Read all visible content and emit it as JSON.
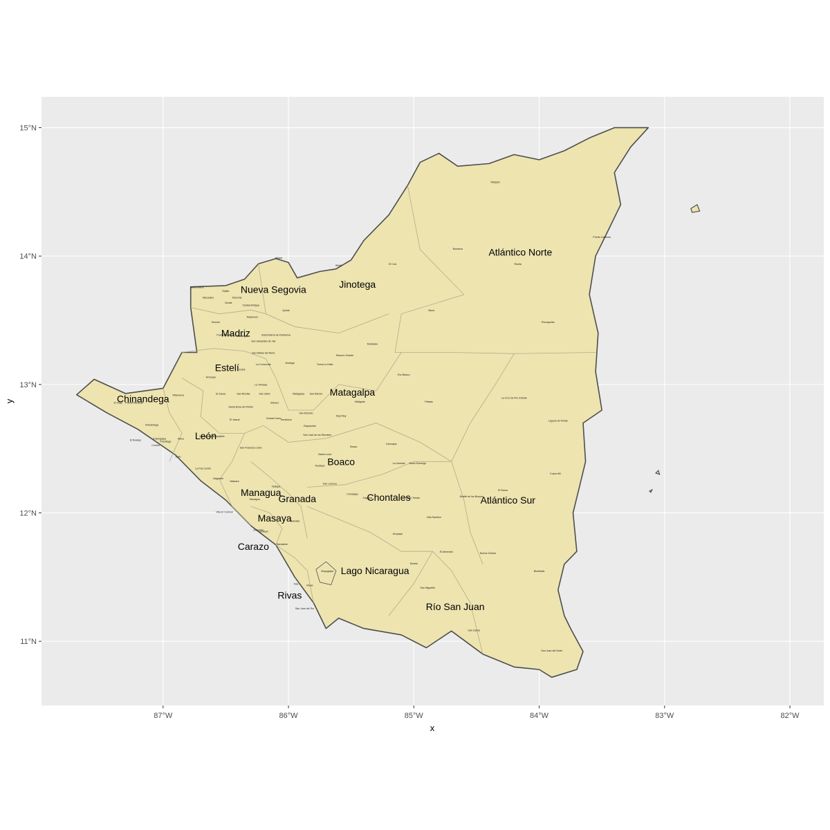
{
  "map": {
    "panel_background": "#ebebeb",
    "grid_color": "#ffffff",
    "land_fill": "#ede4b0",
    "outline_color": "#4d4d4d",
    "inner_border_color": "#b3ab8a",
    "x_axis_title": "x",
    "y_axis_title": "y",
    "x_ticks": [
      {
        "label": "87°W",
        "lon": -87
      },
      {
        "label": "86°W",
        "lon": -86
      },
      {
        "label": "85°W",
        "lon": -85
      },
      {
        "label": "84°W",
        "lon": -84
      },
      {
        "label": "83°W",
        "lon": -83
      },
      {
        "label": "82°W",
        "lon": -82
      }
    ],
    "y_ticks": [
      {
        "label": "15°N",
        "lat": 15
      },
      {
        "label": "14°N",
        "lat": 14
      },
      {
        "label": "13°N",
        "lat": 13
      },
      {
        "label": "12°N",
        "lat": 12
      },
      {
        "label": "11°N",
        "lat": 11
      }
    ],
    "lon_range": [
      -87.97,
      -81.73
    ],
    "lat_range": [
      10.5,
      15.24
    ],
    "outline": [
      [
        -87.69,
        12.92
      ],
      [
        -87.55,
        13.04
      ],
      [
        -87.3,
        12.93
      ],
      [
        -87.0,
        12.97
      ],
      [
        -86.85,
        13.25
      ],
      [
        -86.73,
        13.25
      ],
      [
        -86.78,
        13.6
      ],
      [
        -86.78,
        13.76
      ],
      [
        -86.5,
        13.77
      ],
      [
        -86.35,
        13.82
      ],
      [
        -86.24,
        13.94
      ],
      [
        -86.1,
        13.98
      ],
      [
        -86.0,
        13.95
      ],
      [
        -85.93,
        13.83
      ],
      [
        -85.75,
        13.88
      ],
      [
        -85.62,
        13.9
      ],
      [
        -85.5,
        13.97
      ],
      [
        -85.4,
        14.12
      ],
      [
        -85.2,
        14.32
      ],
      [
        -85.05,
        14.55
      ],
      [
        -84.95,
        14.73
      ],
      [
        -84.8,
        14.8
      ],
      [
        -84.65,
        14.7
      ],
      [
        -84.4,
        14.72
      ],
      [
        -84.2,
        14.79
      ],
      [
        -84.0,
        14.75
      ],
      [
        -83.8,
        14.82
      ],
      [
        -83.6,
        14.92
      ],
      [
        -83.4,
        15.0
      ],
      [
        -83.13,
        15.0
      ],
      [
        -83.27,
        14.85
      ],
      [
        -83.4,
        14.65
      ],
      [
        -83.35,
        14.4
      ],
      [
        -83.45,
        14.2
      ],
      [
        -83.55,
        14.0
      ],
      [
        -83.6,
        13.7
      ],
      [
        -83.53,
        13.4
      ],
      [
        -83.55,
        13.1
      ],
      [
        -83.5,
        12.8
      ],
      [
        -83.65,
        12.7
      ],
      [
        -83.63,
        12.4
      ],
      [
        -83.68,
        12.2
      ],
      [
        -83.73,
        12.0
      ],
      [
        -83.7,
        11.7
      ],
      [
        -83.8,
        11.6
      ],
      [
        -83.85,
        11.4
      ],
      [
        -83.8,
        11.2
      ],
      [
        -83.75,
        11.1
      ],
      [
        -83.65,
        10.92
      ],
      [
        -83.7,
        10.78
      ],
      [
        -83.9,
        10.72
      ],
      [
        -84.0,
        10.78
      ],
      [
        -84.2,
        10.8
      ],
      [
        -84.45,
        10.9
      ],
      [
        -84.7,
        11.08
      ],
      [
        -84.9,
        10.95
      ],
      [
        -85.1,
        11.05
      ],
      [
        -85.4,
        11.1
      ],
      [
        -85.6,
        11.18
      ],
      [
        -85.7,
        11.1
      ],
      [
        -85.8,
        11.3
      ],
      [
        -85.95,
        11.5
      ],
      [
        -86.1,
        11.75
      ],
      [
        -86.3,
        11.9
      ],
      [
        -86.5,
        12.1
      ],
      [
        -86.7,
        12.25
      ],
      [
        -86.9,
        12.45
      ],
      [
        -87.2,
        12.65
      ],
      [
        -87.45,
        12.78
      ]
    ],
    "islands": [
      [
        [
          -82.79,
          14.37
        ],
        [
          -82.74,
          14.4
        ],
        [
          -82.72,
          14.35
        ],
        [
          -82.78,
          14.34
        ]
      ],
      [
        [
          -83.07,
          12.31
        ],
        [
          -83.05,
          12.33
        ],
        [
          -83.04,
          12.3
        ]
      ],
      [
        [
          -83.12,
          12.17
        ],
        [
          -83.1,
          12.18
        ],
        [
          -83.11,
          12.16
        ]
      ]
    ],
    "lakes": [
      [
        [
          -85.78,
          11.56
        ],
        [
          -85.7,
          11.62
        ],
        [
          -85.62,
          11.55
        ],
        [
          -85.66,
          11.44
        ],
        [
          -85.75,
          11.46
        ]
      ]
    ],
    "departments": [
      {
        "name": "Nueva Segovia",
        "lon": -86.12,
        "lat": 13.74
      },
      {
        "name": "Jinotega",
        "lon": -85.45,
        "lat": 13.78
      },
      {
        "name": "Atlántico Norte",
        "lon": -84.15,
        "lat": 14.03
      },
      {
        "name": "Madriz",
        "lon": -86.42,
        "lat": 13.4
      },
      {
        "name": "Estelí",
        "lon": -86.49,
        "lat": 13.13
      },
      {
        "name": "Chinandega",
        "lon": -87.16,
        "lat": 12.89
      },
      {
        "name": "Matagalpa",
        "lon": -85.49,
        "lat": 12.94
      },
      {
        "name": "León",
        "lon": -86.66,
        "lat": 12.6
      },
      {
        "name": "Boaco",
        "lon": -85.58,
        "lat": 12.4
      },
      {
        "name": "Managua",
        "lon": -86.22,
        "lat": 12.16
      },
      {
        "name": "Granada",
        "lon": -85.93,
        "lat": 12.11
      },
      {
        "name": "Chontales",
        "lon": -85.2,
        "lat": 12.12
      },
      {
        "name": "Atlántico Sur",
        "lon": -84.25,
        "lat": 12.1
      },
      {
        "name": "Masaya",
        "lon": -86.11,
        "lat": 11.96
      },
      {
        "name": "Carazo",
        "lon": -86.28,
        "lat": 11.74
      },
      {
        "name": "Lago Nicaragua",
        "lon": -85.31,
        "lat": 11.55
      },
      {
        "name": "Rivas",
        "lon": -85.99,
        "lat": 11.36
      },
      {
        "name": "Río San Juan",
        "lon": -84.67,
        "lat": 11.27
      }
    ],
    "municipalities": [
      {
        "name": "Waspán",
        "lon": -84.35,
        "lat": 14.57
      },
      {
        "name": "Puerto Cabezas",
        "lon": -83.5,
        "lat": 14.14
      },
      {
        "name": "Bonanza",
        "lon": -84.65,
        "lat": 14.05
      },
      {
        "name": "Rosita",
        "lon": -84.17,
        "lat": 13.93
      },
      {
        "name": "Siuna",
        "lon": -84.86,
        "lat": 13.57
      },
      {
        "name": "Prinzapolka",
        "lon": -83.93,
        "lat": 13.48
      },
      {
        "name": "El Cuá",
        "lon": -85.17,
        "lat": 13.93
      },
      {
        "name": "Wiwilí",
        "lon": -85.6,
        "lat": 13.92
      },
      {
        "name": "Jalapa",
        "lon": -86.08,
        "lat": 13.98
      },
      {
        "name": "Mulukukú",
        "lon": -85.33,
        "lat": 13.31
      },
      {
        "name": "Río Blanco",
        "lon": -85.08,
        "lat": 13.07
      },
      {
        "name": "Paiwas",
        "lon": -84.88,
        "lat": 12.86
      },
      {
        "name": "La Cruz de Río Grande",
        "lon": -84.2,
        "lat": 12.89
      },
      {
        "name": "Laguna de Perlas",
        "lon": -83.85,
        "lat": 12.71
      },
      {
        "name": "Kukra Hill",
        "lon": -83.87,
        "lat": 12.3
      },
      {
        "name": "El Rama",
        "lon": -84.29,
        "lat": 12.17
      },
      {
        "name": "Muelle de los Bueyes",
        "lon": -84.54,
        "lat": 12.12
      },
      {
        "name": "Nueva Guinea",
        "lon": -84.41,
        "lat": 11.68
      },
      {
        "name": "El Almendro",
        "lon": -84.74,
        "lat": 11.69
      },
      {
        "name": "Bluefields",
        "lon": -84.0,
        "lat": 11.54
      },
      {
        "name": "San Carlos",
        "lon": -84.52,
        "lat": 11.08
      },
      {
        "name": "San Juan del Norte",
        "lon": -83.9,
        "lat": 10.92
      },
      {
        "name": "San Miguelito",
        "lon": -84.89,
        "lat": 11.41
      },
      {
        "name": "Morrito",
        "lon": -85.0,
        "lat": 11.6
      },
      {
        "name": "Acoyapa",
        "lon": -85.13,
        "lat": 11.83
      },
      {
        "name": "Villa Sandino",
        "lon": -84.84,
        "lat": 11.96
      },
      {
        "name": "Santo Tomás",
        "lon": -85.01,
        "lat": 12.11
      },
      {
        "name": "Juigalpa",
        "lon": -85.37,
        "lat": 12.11
      },
      {
        "name": "Comalapa",
        "lon": -85.49,
        "lat": 12.14
      },
      {
        "name": "Teustepe",
        "lon": -85.75,
        "lat": 12.36
      },
      {
        "name": "Santa Lucía",
        "lon": -85.71,
        "lat": 12.45
      },
      {
        "name": "Boaco",
        "lon": -85.48,
        "lat": 12.51
      },
      {
        "name": "Camoapa",
        "lon": -85.18,
        "lat": 12.53
      },
      {
        "name": "San Lorenzo",
        "lon": -85.67,
        "lat": 12.22
      },
      {
        "name": "La Libertad",
        "lon": -85.12,
        "lat": 12.38
      },
      {
        "name": "Santo Domingo",
        "lon": -84.97,
        "lat": 12.38
      },
      {
        "name": "San José de los Remates",
        "lon": -85.77,
        "lat": 12.6
      },
      {
        "name": "Muy Muy",
        "lon": -85.58,
        "lat": 12.75
      },
      {
        "name": "Esquipulas",
        "lon": -85.83,
        "lat": 12.67
      },
      {
        "name": "San Dionisio",
        "lon": -85.86,
        "lat": 12.77
      },
      {
        "name": "Terrabona",
        "lon": -86.02,
        "lat": 12.72
      },
      {
        "name": "Matiguás",
        "lon": -85.43,
        "lat": 12.86
      },
      {
        "name": "Sébaco",
        "lon": -86.11,
        "lat": 12.85
      },
      {
        "name": "Matagalpa",
        "lon": -85.92,
        "lat": 12.92
      },
      {
        "name": "San Ramón",
        "lon": -85.78,
        "lat": 12.92
      },
      {
        "name": "Rancho Grande",
        "lon": -85.55,
        "lat": 13.22
      },
      {
        "name": "Tuma-La Dalia",
        "lon": -85.71,
        "lat": 13.15
      },
      {
        "name": "Jinotega",
        "lon": -85.99,
        "lat": 13.16
      },
      {
        "name": "Santa María de Pantasma",
        "lon": -86.1,
        "lat": 13.38
      },
      {
        "name": "San Rafael del Norte",
        "lon": -86.2,
        "lat": 13.24
      },
      {
        "name": "La Concordia",
        "lon": -86.2,
        "lat": 13.15
      },
      {
        "name": "San Sebastián de Yalí",
        "lon": -86.2,
        "lat": 13.33
      },
      {
        "name": "Condega",
        "lon": -86.37,
        "lat": 13.37
      },
      {
        "name": "Pueblo Nuevo",
        "lon": -86.51,
        "lat": 13.38
      },
      {
        "name": "Estelí",
        "lon": -86.37,
        "lat": 13.11
      },
      {
        "name": "La Trinidad",
        "lon": -86.22,
        "lat": 12.99
      },
      {
        "name": "San Nicolás",
        "lon": -86.36,
        "lat": 12.92
      },
      {
        "name": "San Isidro",
        "lon": -86.19,
        "lat": 12.92
      },
      {
        "name": "El Sauce",
        "lon": -86.54,
        "lat": 12.92
      },
      {
        "name": "Achuapa",
        "lon": -86.62,
        "lat": 13.05
      },
      {
        "name": "Villanueva",
        "lon": -86.88,
        "lat": 12.91
      },
      {
        "name": "Puerto Morazán",
        "lon": -87.23,
        "lat": 12.85
      },
      {
        "name": "El Viejo",
        "lon": -87.36,
        "lat": 12.85
      },
      {
        "name": "Chinandega",
        "lon": -87.09,
        "lat": 12.68
      },
      {
        "name": "El Realejo",
        "lon": -87.22,
        "lat": 12.56
      },
      {
        "name": "Corinto",
        "lon": -87.06,
        "lat": 12.52
      },
      {
        "name": "Chichigalpa",
        "lon": -87.03,
        "lat": 12.57
      },
      {
        "name": "Posoltega",
        "lon": -86.98,
        "lat": 12.55
      },
      {
        "name": "Telica",
        "lon": -86.86,
        "lat": 12.57
      },
      {
        "name": "Larreynaga-Malpaisillo",
        "lon": -86.61,
        "lat": 12.59
      },
      {
        "name": "El Jicaral",
        "lon": -86.43,
        "lat": 12.72
      },
      {
        "name": "Santa Rosa del Peñón",
        "lon": -86.38,
        "lat": 12.82
      },
      {
        "name": "Ciudad Darío",
        "lon": -86.12,
        "lat": 12.73
      },
      {
        "name": "San Francisco Libre",
        "lon": -86.3,
        "lat": 12.5
      },
      {
        "name": "La Paz Centro",
        "lon": -86.68,
        "lat": 12.34
      },
      {
        "name": "León",
        "lon": -86.88,
        "lat": 12.43
      },
      {
        "name": "Nagarote",
        "lon": -86.56,
        "lat": 12.26
      },
      {
        "name": "Mateare",
        "lon": -86.43,
        "lat": 12.24
      },
      {
        "name": "Tipitapa",
        "lon": -86.1,
        "lat": 12.2
      },
      {
        "name": "Villa El Carmen",
        "lon": -86.51,
        "lat": 12.0
      },
      {
        "name": "Managua",
        "lon": -86.27,
        "lat": 12.1
      },
      {
        "name": "Diriamba",
        "lon": -86.24,
        "lat": 11.86
      },
      {
        "name": "Jinotepe",
        "lon": -86.2,
        "lat": 11.85
      },
      {
        "name": "Tola",
        "lon": -85.94,
        "lat": 11.44
      },
      {
        "name": "San Juan del Sur",
        "lon": -85.87,
        "lat": 11.25
      },
      {
        "name": "Rivas",
        "lon": -85.83,
        "lat": 11.43
      },
      {
        "name": "Moyogalpa",
        "lon": -85.69,
        "lat": 11.54
      },
      {
        "name": "Nandaime",
        "lon": -86.05,
        "lat": 11.75
      },
      {
        "name": "Granada",
        "lon": -85.95,
        "lat": 11.93
      },
      {
        "name": "Somoto",
        "lon": -86.58,
        "lat": 13.48
      },
      {
        "name": "Ocotal",
        "lon": -86.48,
        "lat": 13.63
      },
      {
        "name": "Dipilto",
        "lon": -86.5,
        "lat": 13.72
      },
      {
        "name": "Mozonte",
        "lon": -86.41,
        "lat": 13.67
      },
      {
        "name": "Ciudad Antigua",
        "lon": -86.3,
        "lat": 13.61
      },
      {
        "name": "Quilalí",
        "lon": -86.02,
        "lat": 13.57
      },
      {
        "name": "Telpaneca",
        "lon": -86.29,
        "lat": 13.52
      },
      {
        "name": "Santa María",
        "lon": -86.73,
        "lat": 13.75
      },
      {
        "name": "Macuelizo",
        "lon": -86.64,
        "lat": 13.67
      }
    ]
  }
}
